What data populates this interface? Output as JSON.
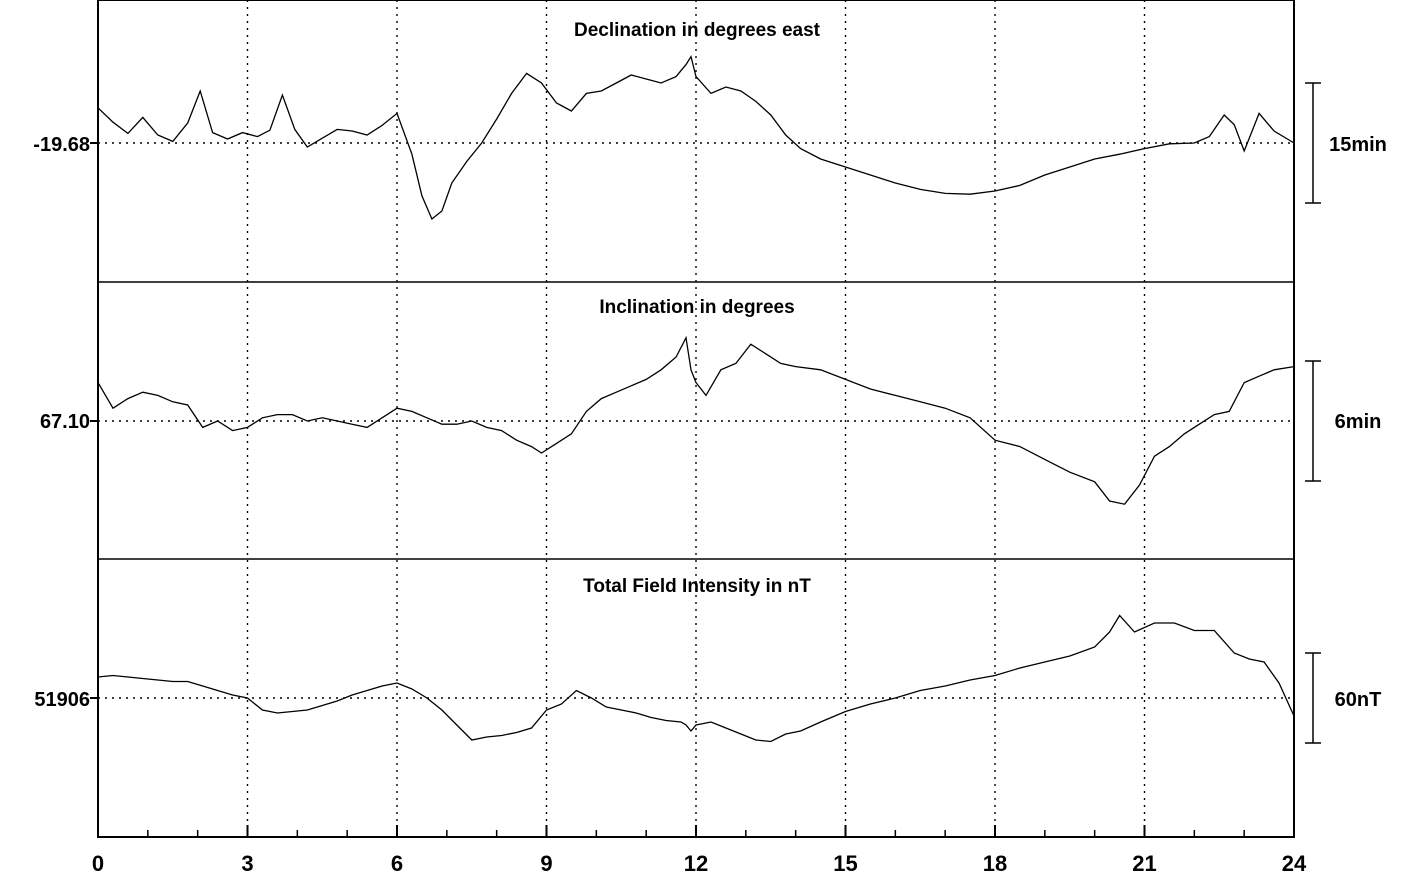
{
  "chart_data": [
    {
      "type": "line",
      "title": "Declination in degrees east",
      "reference_value": "-19.68",
      "scale_bar_label": "15min",
      "scale_bar_amplitude_min": 15,
      "xlim": [
        0,
        24
      ],
      "series": [
        {
          "x": [
            0.0,
            0.3,
            0.6,
            0.9,
            1.2,
            1.5,
            1.8,
            2.05,
            2.3,
            2.6,
            2.9,
            3.2,
            3.45,
            3.7,
            3.95,
            4.2,
            4.5,
            4.8,
            5.1,
            5.4,
            5.7,
            6.0,
            6.3,
            6.5,
            6.7,
            6.9,
            7.1,
            7.4,
            7.7,
            8.0,
            8.3,
            8.6,
            8.9,
            9.2,
            9.5,
            9.8,
            10.1,
            10.4,
            10.7,
            11.0,
            11.3,
            11.6,
            11.8,
            11.9,
            12.0,
            12.3,
            12.6,
            12.9,
            13.2,
            13.5,
            13.8,
            14.1,
            14.5,
            15.0,
            15.5,
            16.0,
            16.5,
            17.0,
            17.5,
            18.0,
            18.5,
            19.0,
            19.5,
            20.0,
            20.5,
            21.0,
            21.5,
            22.0,
            22.3,
            22.6,
            22.8,
            23.0,
            23.3,
            23.6,
            24.0
          ],
          "y": [
            4.4,
            2.6,
            1.2,
            3.2,
            1.0,
            0.2,
            2.5,
            6.5,
            1.3,
            0.5,
            1.3,
            0.8,
            1.6,
            6.0,
            1.7,
            -0.5,
            0.6,
            1.7,
            1.5,
            1.0,
            2.2,
            3.7,
            -1.4,
            -6.6,
            -9.5,
            -8.5,
            -5.0,
            -2.3,
            0.0,
            3.0,
            6.2,
            8.7,
            7.5,
            5.0,
            4.0,
            6.2,
            6.5,
            7.5,
            8.5,
            8.0,
            7.5,
            8.3,
            9.8,
            10.8,
            8.3,
            6.2,
            7.0,
            6.5,
            5.2,
            3.5,
            1.0,
            -0.7,
            -2.0,
            -3.0,
            -4.0,
            -5.0,
            -5.8,
            -6.3,
            -6.4,
            -6.0,
            -5.3,
            -4.0,
            -3.0,
            -2.0,
            -1.4,
            -0.7,
            -0.1,
            0.0,
            0.8,
            3.5,
            2.3,
            -1.0,
            3.7,
            1.5,
            0.0
          ]
        }
      ]
    },
    {
      "type": "line",
      "title": "Inclination in degrees",
      "reference_value": "67.10",
      "scale_bar_label": "6min",
      "scale_bar_amplitude_min": 6,
      "xlim": [
        0,
        24
      ],
      "series": [
        {
          "x": [
            0.0,
            0.3,
            0.6,
            0.9,
            1.2,
            1.5,
            1.8,
            2.1,
            2.4,
            2.7,
            3.0,
            3.3,
            3.6,
            3.9,
            4.2,
            4.5,
            4.8,
            5.1,
            5.4,
            5.7,
            6.0,
            6.3,
            6.6,
            6.9,
            7.2,
            7.5,
            7.8,
            8.1,
            8.4,
            8.7,
            8.9,
            9.2,
            9.5,
            9.8,
            10.1,
            10.4,
            10.7,
            11.0,
            11.3,
            11.6,
            11.8,
            11.9,
            12.0,
            12.2,
            12.5,
            12.8,
            13.1,
            13.4,
            13.7,
            14.0,
            14.5,
            15.0,
            15.5,
            16.0,
            16.5,
            17.0,
            17.5,
            18.0,
            18.5,
            19.0,
            19.5,
            20.0,
            20.3,
            20.6,
            20.9,
            21.2,
            21.5,
            21.8,
            22.1,
            22.4,
            22.7,
            23.0,
            23.3,
            23.6,
            24.0
          ],
          "y": [
            1.2,
            0.4,
            0.7,
            0.9,
            0.8,
            0.6,
            0.5,
            -0.2,
            0.0,
            -0.3,
            -0.2,
            0.1,
            0.2,
            0.2,
            0.0,
            0.1,
            0.0,
            -0.1,
            -0.2,
            0.1,
            0.4,
            0.3,
            0.1,
            -0.1,
            -0.1,
            0.0,
            -0.2,
            -0.3,
            -0.6,
            -0.8,
            -1.0,
            -0.7,
            -0.4,
            0.3,
            0.7,
            0.9,
            1.1,
            1.3,
            1.6,
            2.0,
            2.6,
            1.6,
            1.2,
            0.8,
            1.6,
            1.8,
            2.4,
            2.1,
            1.8,
            1.7,
            1.6,
            1.3,
            1.0,
            0.8,
            0.6,
            0.4,
            0.1,
            -0.6,
            -0.8,
            -1.2,
            -1.6,
            -1.9,
            -2.5,
            -2.6,
            -2.0,
            -1.1,
            -0.8,
            -0.4,
            -0.1,
            0.2,
            0.3,
            1.2,
            1.4,
            1.6,
            1.7
          ]
        }
      ]
    },
    {
      "type": "line",
      "title": "Total Field Intensity in nT",
      "reference_value": "51906",
      "scale_bar_label": "60nT",
      "scale_bar_amplitude_nT": 60,
      "xlim": [
        0,
        24
      ],
      "xticks": [
        "0",
        "3",
        "6",
        "9",
        "12",
        "15",
        "18",
        "21",
        "24"
      ],
      "series": [
        {
          "x": [
            0.0,
            0.3,
            0.6,
            0.9,
            1.2,
            1.5,
            1.8,
            2.1,
            2.4,
            2.7,
            3.0,
            3.3,
            3.6,
            3.9,
            4.2,
            4.5,
            4.8,
            5.1,
            5.4,
            5.7,
            6.0,
            6.3,
            6.6,
            6.9,
            7.2,
            7.5,
            7.8,
            8.1,
            8.4,
            8.7,
            9.0,
            9.3,
            9.6,
            9.9,
            10.2,
            10.5,
            10.8,
            11.1,
            11.4,
            11.7,
            11.8,
            11.9,
            12.0,
            12.3,
            12.6,
            12.9,
            13.2,
            13.5,
            13.8,
            14.1,
            14.5,
            15.0,
            15.5,
            16.0,
            16.5,
            17.0,
            17.5,
            18.0,
            18.5,
            19.0,
            19.5,
            20.0,
            20.3,
            20.5,
            20.8,
            21.2,
            21.6,
            22.0,
            22.4,
            22.8,
            23.1,
            23.4,
            23.7,
            24.0
          ],
          "y": [
            14,
            15,
            14,
            13,
            12,
            11,
            11,
            8,
            5,
            2,
            0,
            -8,
            -10,
            -9,
            -8,
            -5,
            -2,
            2,
            5,
            8,
            10,
            6,
            0,
            -8,
            -18,
            -28,
            -26,
            -25,
            -23,
            -20,
            -8,
            -4,
            5,
            0,
            -6,
            -8,
            -10,
            -13,
            -15,
            -16,
            -18,
            -22,
            -18,
            -16,
            -20,
            -24,
            -28,
            -29,
            -24,
            -22,
            -16,
            -9,
            -4,
            0,
            5,
            8,
            12,
            15,
            20,
            24,
            28,
            34,
            44,
            55,
            44,
            50,
            50,
            45,
            45,
            30,
            26,
            24,
            10,
            -12
          ]
        }
      ]
    }
  ]
}
